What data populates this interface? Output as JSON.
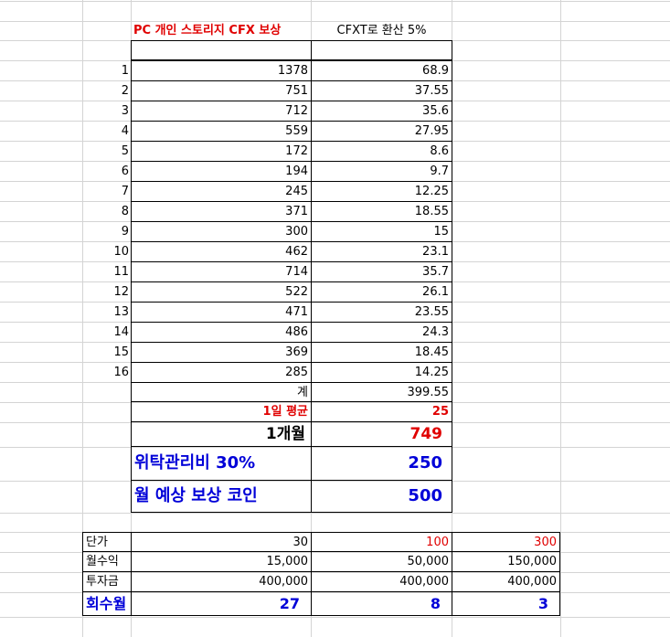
{
  "header": {
    "title": "PC 개인 스토리지 CFX 보상",
    "conversion": "CFXT로 환산 5%"
  },
  "rows": [
    {
      "n": "1",
      "value": "1378",
      "cfxt": "68.9"
    },
    {
      "n": "2",
      "value": "751",
      "cfxt": "37.55"
    },
    {
      "n": "3",
      "value": "712",
      "cfxt": "35.6"
    },
    {
      "n": "4",
      "value": "559",
      "cfxt": "27.95"
    },
    {
      "n": "5",
      "value": "172",
      "cfxt": "8.6"
    },
    {
      "n": "6",
      "value": "194",
      "cfxt": "9.7"
    },
    {
      "n": "7",
      "value": "245",
      "cfxt": "12.25"
    },
    {
      "n": "8",
      "value": "371",
      "cfxt": "18.55"
    },
    {
      "n": "9",
      "value": "300",
      "cfxt": "15"
    },
    {
      "n": "10",
      "value": "462",
      "cfxt": "23.1"
    },
    {
      "n": "11",
      "value": "714",
      "cfxt": "35.7"
    },
    {
      "n": "12",
      "value": "522",
      "cfxt": "26.1"
    },
    {
      "n": "13",
      "value": "471",
      "cfxt": "23.55"
    },
    {
      "n": "14",
      "value": "486",
      "cfxt": "24.3"
    },
    {
      "n": "15",
      "value": "369",
      "cfxt": "18.45"
    },
    {
      "n": "16",
      "value": "285",
      "cfxt": "14.25"
    }
  ],
  "summary": {
    "total_label": "계",
    "total_value": "399.55",
    "daily_avg_label": "1일 평균",
    "daily_avg_value": "25",
    "monthly_label": "1개월",
    "monthly_value": "749",
    "fee_label": "위탁관리비 30%",
    "fee_value": "250",
    "expected_label": "월 예상 보상 코인",
    "expected_value": "500"
  },
  "lower": {
    "price_label": "단가",
    "prices": [
      "30",
      "100",
      "300"
    ],
    "monthly_income_label": "월수익",
    "monthly_income": [
      "15,000",
      "50,000",
      "150,000"
    ],
    "investment_label": "투자금",
    "investment": [
      "400,000",
      "400,000",
      "400,000"
    ],
    "payback_label": "회수월",
    "payback": [
      "27",
      "8",
      "3"
    ]
  },
  "colors": {
    "red": "#e00000",
    "blue": "#0000d8",
    "gridline": "#d4d4d4",
    "border": "#000000"
  }
}
